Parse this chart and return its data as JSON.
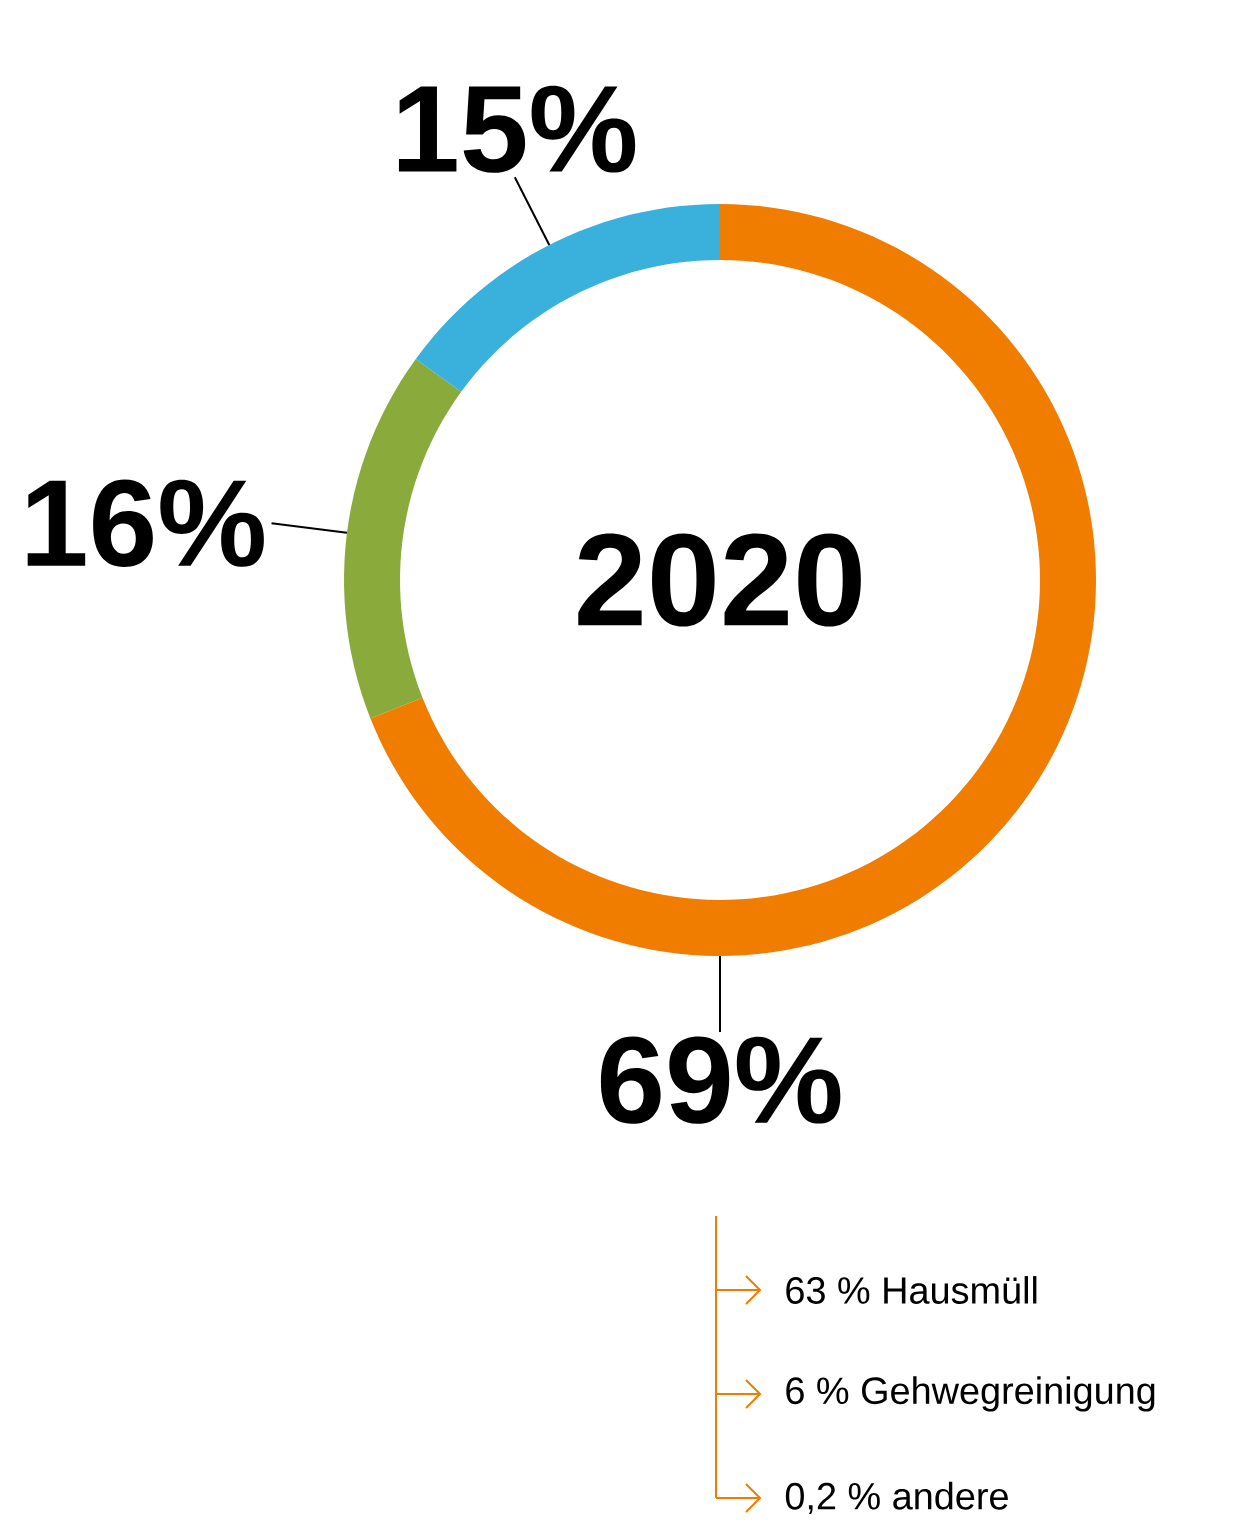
{
  "chart_data": {
    "type": "donut",
    "title": "2020",
    "categories": [
      null,
      null,
      null
    ],
    "values": [
      69,
      16,
      15
    ],
    "colors": [
      "#f07d00",
      "#8aab3b",
      "#3ab0dc"
    ],
    "value_labels": [
      "69%",
      "16%",
      "15%"
    ],
    "annotations": [
      "63 % Hausmüll",
      "6 % Gehwegreinigung",
      "0,2 % andere"
    ]
  }
}
